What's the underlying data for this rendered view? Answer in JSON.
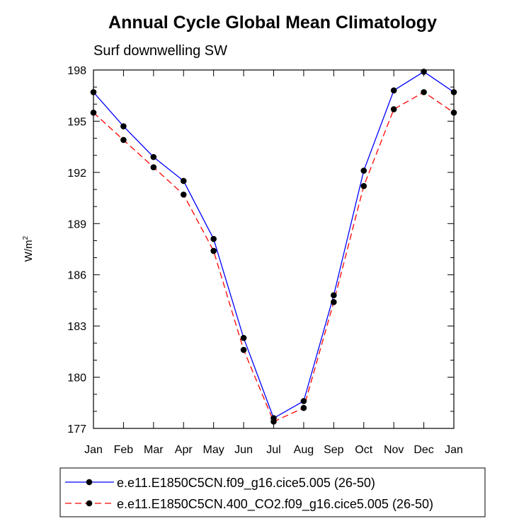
{
  "chart_data": {
    "type": "line",
    "title": "Annual Cycle Global Mean Climatology",
    "subtitle": "Surf downwelling SW",
    "ylabel": "W/m",
    "ylabel_sup": "2",
    "xlabel": "",
    "categories": [
      "Jan",
      "Feb",
      "Mar",
      "Apr",
      "May",
      "Jun",
      "Jul",
      "Aug",
      "Sep",
      "Oct",
      "Nov",
      "Dec",
      "Jan"
    ],
    "ylim": [
      177,
      198
    ],
    "yticks": [
      177,
      180,
      183,
      186,
      189,
      192,
      195,
      198
    ],
    "ytick_labels": [
      "177",
      "180",
      "183",
      "186",
      "189",
      "192",
      "195",
      "198"
    ],
    "series": [
      {
        "name": "e.e11.E1850C5CN.f09_g16.cice5.005 (26-50)",
        "color": "#0000ff",
        "dash": "solid",
        "values": [
          196.7,
          194.7,
          192.9,
          191.5,
          188.1,
          182.3,
          177.6,
          178.6,
          184.8,
          192.1,
          196.8,
          197.9,
          196.7
        ]
      },
      {
        "name": "e.e11.E1850C5CN.400_CO2.f09_g16.cice5.005 (26-50)",
        "color": "#ff0000",
        "dash": "dashed",
        "values": [
          195.5,
          193.9,
          192.3,
          190.7,
          187.4,
          181.6,
          177.4,
          178.2,
          184.4,
          191.2,
          195.7,
          196.7,
          195.5
        ]
      }
    ]
  }
}
